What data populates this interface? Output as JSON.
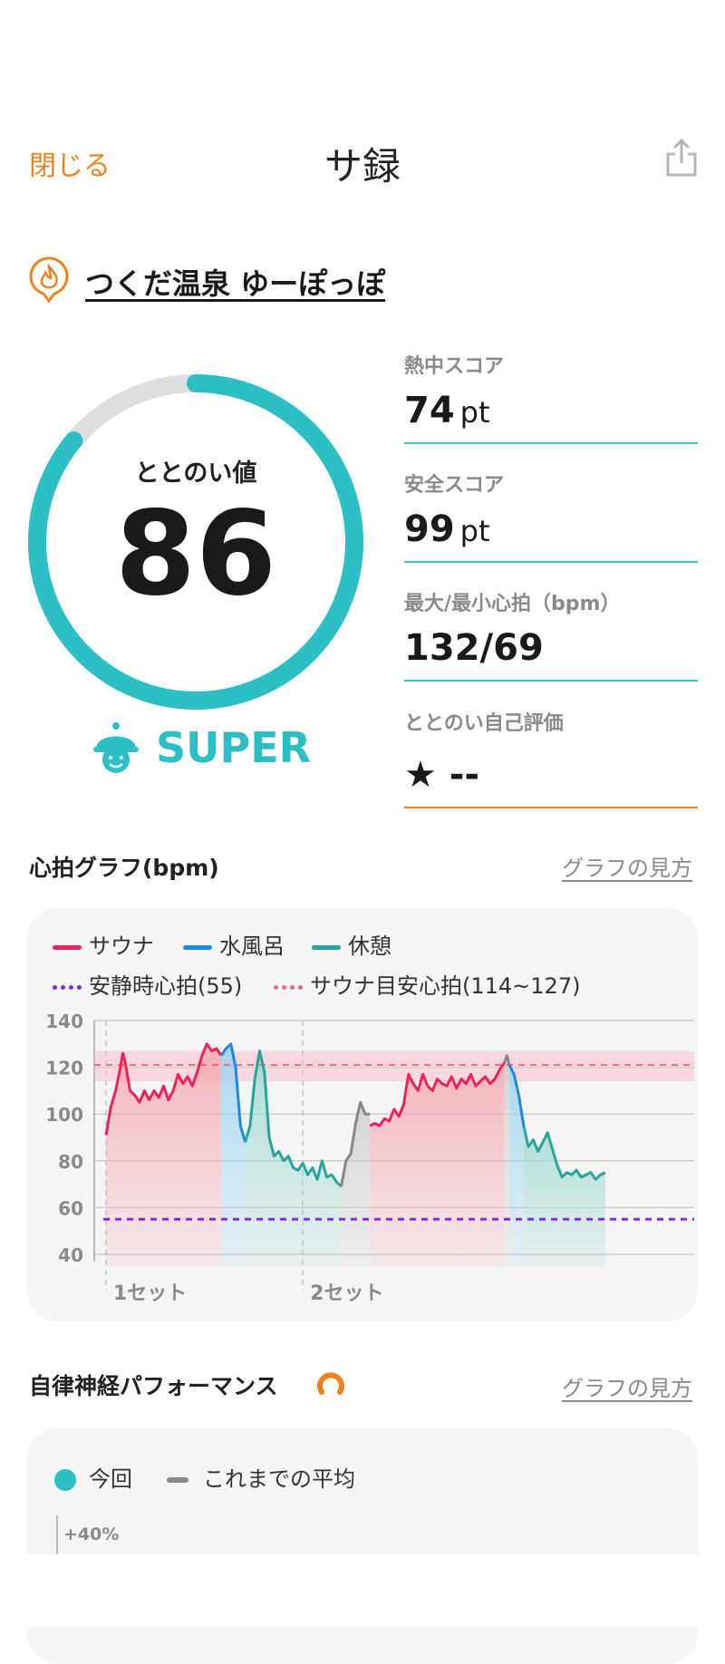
{
  "header": {
    "close_label": "閉じる",
    "title": "サ録",
    "share_icon": "share-icon"
  },
  "facility": {
    "icon": "sauna-fire-pin-icon",
    "name": "つくだ温泉 ゆーぽっぽ"
  },
  "totonoi": {
    "label": "ととのい値",
    "value": "86",
    "level": "SUPER",
    "level_icon": "sauna-hat-face-icon",
    "gauge_fraction": 0.86,
    "accent_color": "#2dbfc6"
  },
  "stats": [
    {
      "label": "熱中スコア",
      "value": "74",
      "unit": "pt"
    },
    {
      "label": "安全スコア",
      "value": "99",
      "unit": "pt"
    },
    {
      "label": "最大/最小心拍（bpm）",
      "value": "132/69",
      "unit": ""
    },
    {
      "label": "ととのい自己評価",
      "value": "★ --",
      "unit": ""
    }
  ],
  "heart_graph": {
    "title": "心拍グラフ(bpm)",
    "howto": "グラフの見方",
    "legend": {
      "sauna": "サウナ",
      "water": "水風呂",
      "rest": "休憩",
      "resting_hr": "安静時心拍(55)",
      "target_hr": "サウナ目安心拍(114~127)"
    },
    "set_labels": [
      "1セット",
      "2セット"
    ]
  },
  "chart_data": {
    "type": "line",
    "ylim": [
      40,
      140
    ],
    "yticks": [
      140,
      120,
      100,
      80,
      60,
      40
    ],
    "resting_hr": 55,
    "target_band": [
      114,
      127
    ],
    "target_line": 121,
    "set_starts_min": [
      0,
      41
    ],
    "segments": [
      {
        "phase": "sauna",
        "color": "#e8245a",
        "points": [
          [
            0,
            91
          ],
          [
            1,
            103
          ],
          [
            2,
            110
          ],
          [
            3,
            120
          ],
          [
            3.5,
            126
          ],
          [
            4,
            122
          ],
          [
            5,
            110
          ],
          [
            6,
            108
          ],
          [
            7,
            105
          ],
          [
            8,
            110
          ],
          [
            9,
            106
          ],
          [
            10,
            110
          ],
          [
            11,
            107
          ],
          [
            12,
            112
          ],
          [
            13,
            106
          ],
          [
            14,
            110
          ],
          [
            15,
            117
          ],
          [
            16,
            113
          ],
          [
            17,
            116
          ],
          [
            18,
            112
          ],
          [
            19,
            118
          ],
          [
            20,
            125
          ],
          [
            21,
            130
          ],
          [
            22,
            127
          ],
          [
            23,
            128
          ],
          [
            24,
            125
          ]
        ]
      },
      {
        "phase": "water",
        "color": "#1e88e5",
        "points": [
          [
            24,
            125
          ],
          [
            25,
            128
          ],
          [
            26,
            130
          ],
          [
            27,
            120
          ],
          [
            28,
            95
          ],
          [
            29,
            88
          ]
        ]
      },
      {
        "phase": "rest",
        "color": "#26a69a",
        "points": [
          [
            29,
            88
          ],
          [
            30,
            95
          ],
          [
            31,
            115
          ],
          [
            32,
            127
          ],
          [
            33,
            118
          ],
          [
            34,
            90
          ],
          [
            35,
            82
          ],
          [
            36,
            84
          ],
          [
            37,
            80
          ],
          [
            38,
            82
          ],
          [
            39,
            77
          ],
          [
            40,
            76
          ],
          [
            41,
            79
          ],
          [
            42,
            74
          ],
          [
            43,
            77
          ],
          [
            44,
            72
          ],
          [
            45,
            80
          ],
          [
            46,
            73
          ],
          [
            47,
            74
          ],
          [
            48,
            71
          ],
          [
            49,
            69
          ]
        ]
      },
      {
        "phase": "other",
        "color": "#888888",
        "points": [
          [
            49,
            69
          ],
          [
            50,
            80
          ],
          [
            51,
            83
          ],
          [
            52,
            96
          ],
          [
            53,
            105
          ],
          [
            54,
            100
          ],
          [
            55,
            100
          ]
        ]
      },
      {
        "phase": "sauna",
        "color": "#e8245a",
        "points": [
          [
            55,
            95
          ],
          [
            56,
            96
          ],
          [
            57,
            95
          ],
          [
            58,
            98
          ],
          [
            59,
            97
          ],
          [
            60,
            102
          ],
          [
            61,
            99
          ],
          [
            62,
            104
          ],
          [
            63,
            117
          ],
          [
            64,
            113
          ],
          [
            65,
            110
          ],
          [
            66,
            117
          ],
          [
            67,
            112
          ],
          [
            68,
            110
          ],
          [
            69,
            115
          ],
          [
            70,
            113
          ],
          [
            71,
            112
          ],
          [
            72,
            116
          ],
          [
            73,
            111
          ],
          [
            74,
            115
          ],
          [
            75,
            113
          ],
          [
            76,
            117
          ],
          [
            77,
            112
          ],
          [
            78,
            114
          ],
          [
            79,
            116
          ],
          [
            80,
            113
          ],
          [
            81,
            115
          ],
          [
            82,
            119
          ],
          [
            83,
            122
          ]
        ]
      },
      {
        "phase": "other",
        "color": "#888888",
        "points": [
          [
            83,
            122
          ],
          [
            83.5,
            125
          ],
          [
            84,
            121
          ]
        ]
      },
      {
        "phase": "water",
        "color": "#1e88e5",
        "points": [
          [
            84,
            121
          ],
          [
            85,
            117
          ],
          [
            86,
            108
          ],
          [
            87,
            95
          ]
        ]
      },
      {
        "phase": "rest",
        "color": "#26a69a",
        "points": [
          [
            87,
            95
          ],
          [
            88,
            86
          ],
          [
            89,
            89
          ],
          [
            90,
            84
          ],
          [
            91,
            88
          ],
          [
            92,
            92
          ],
          [
            93,
            85
          ],
          [
            94,
            78
          ],
          [
            95,
            73
          ],
          [
            96,
            75
          ],
          [
            97,
            74
          ],
          [
            98,
            76
          ],
          [
            99,
            73
          ],
          [
            100,
            74
          ],
          [
            101,
            75
          ],
          [
            102,
            72
          ],
          [
            103,
            74
          ],
          [
            104,
            75
          ]
        ]
      }
    ],
    "x_max": 118
  },
  "ans_performance": {
    "title": "自律神経パフォーマンス",
    "title_icon": "ans-ring-icon",
    "howto": "グラフの見方",
    "legend_current": "今回",
    "legend_average": "これまでの平均",
    "first_tick": "+40%"
  }
}
